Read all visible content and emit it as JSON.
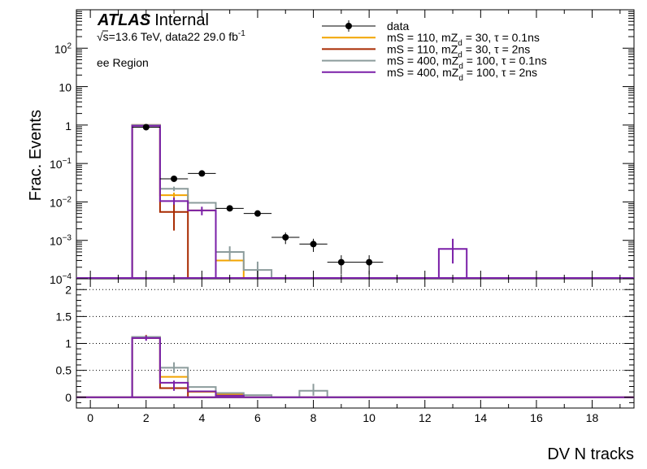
{
  "figure": {
    "atlas_label": "ATLAS",
    "atlas_suffix": "Internal",
    "energy_label": "√s=13.6 TeV, data22 29.0 fb",
    "energy_sup": "-1",
    "region_label": "ee Region"
  },
  "colors": {
    "data": "#000000",
    "series": [
      "#f2a400",
      "#a82a00",
      "#8c9c9c",
      "#7a1fa8"
    ]
  },
  "chart_data": [
    {
      "type": "line",
      "name": "main-panel",
      "ylabel": "Frac. Events",
      "yscale": "log",
      "ylim": [
        0.0001,
        1000
      ],
      "xlim": [
        -0.5,
        19.5
      ],
      "ytick_labels": [
        {
          "v": 100,
          "label": "10",
          "sup": "2"
        },
        {
          "v": 10,
          "label": "10",
          "sup": ""
        },
        {
          "v": 1,
          "label": "1",
          "sup": ""
        },
        {
          "v": 0.1,
          "label": "10",
          "sup": "−1"
        },
        {
          "v": 0.01,
          "label": "10",
          "sup": "−2"
        },
        {
          "v": 0.001,
          "label": "10",
          "sup": "−3"
        },
        {
          "v": 0.0001,
          "label": "10",
          "sup": "−4"
        }
      ],
      "legend_position": "top-right",
      "legend": [
        {
          "label": "data",
          "marker": "point"
        },
        {
          "label": "mS = 110, mZ",
          "sub": "d",
          "rest": " = 30, τ = 0.1ns",
          "marker": "line"
        },
        {
          "label": "mS = 110, mZ",
          "sub": "d",
          "rest": " = 30, τ = 2ns",
          "marker": "line"
        },
        {
          "label": "mS = 400, mZ",
          "sub": "d",
          "rest": " = 100, τ = 0.1ns",
          "marker": "line"
        },
        {
          "label": "mS = 400, mZ",
          "sub": "d",
          "rest": " = 100, τ = 2ns",
          "marker": "line"
        }
      ],
      "data_points": [
        {
          "x": 2,
          "y": 0.88,
          "yerr": 0.05
        },
        {
          "x": 3,
          "y": 0.04,
          "yerr": 0.005
        },
        {
          "x": 4,
          "y": 0.055,
          "yerr": 0.005
        },
        {
          "x": 5,
          "y": 0.0068,
          "yerr": 0.0008
        },
        {
          "x": 6,
          "y": 0.005,
          "yerr": 0.0006
        },
        {
          "x": 7,
          "y": 0.0012,
          "yerr": 0.0004
        },
        {
          "x": 8,
          "y": 0.0008,
          "yerr": 0.0003
        },
        {
          "x": 9,
          "y": 0.00027,
          "yerr": 0.00014
        },
        {
          "x": 10,
          "y": 0.00027,
          "yerr": 0.00014
        }
      ],
      "series": [
        {
          "bins": [
            [
              2,
              1.0
            ],
            [
              3,
              0.015
            ],
            [
              4,
              0.006
            ],
            [
              5,
              0.0003
            ]
          ],
          "errors": [
            [
              3,
              0.0125,
              0.0175
            ]
          ]
        },
        {
          "bins": [
            [
              2,
              1.0
            ],
            [
              3,
              0.0055
            ],
            [
              4,
              0
            ]
          ],
          "errors": [
            [
              3,
              0.0018,
              0.009
            ]
          ]
        },
        {
          "bins": [
            [
              2,
              1.0
            ],
            [
              3,
              0.022
            ],
            [
              4,
              0.0095
            ],
            [
              5,
              0.0005
            ],
            [
              6,
              0.00017
            ]
          ],
          "errors": [
            [
              3,
              0.019,
              0.025
            ],
            [
              5,
              0.0003,
              0.0007
            ],
            [
              6,
              9e-05,
              0.00028
            ]
          ]
        },
        {
          "bins": [
            [
              2,
              0.96
            ],
            [
              3,
              0.0105
            ],
            [
              4,
              0.006
            ],
            [
              13,
              0.0006
            ]
          ],
          "errors": [
            [
              3,
              0.0085,
              0.013
            ],
            [
              4,
              0.0045,
              0.0075
            ],
            [
              13,
              0.00025,
              0.0011
            ]
          ]
        }
      ]
    },
    {
      "type": "line",
      "name": "ratio-panel",
      "xlabel": "DV N tracks",
      "ylim": [
        -0.2,
        2.2
      ],
      "xlim": [
        -0.5,
        19.5
      ],
      "yticks": [
        0,
        0.5,
        1,
        1.5,
        2
      ],
      "ytick_labels": [
        "0",
        "0.5",
        "1",
        "1.5",
        "2"
      ],
      "xticks": [
        0,
        2,
        4,
        6,
        8,
        10,
        12,
        14,
        16,
        18
      ],
      "xtick_labels": [
        "0",
        "2",
        "4",
        "6",
        "8",
        "10",
        "12",
        "14",
        "16",
        "18"
      ],
      "grid": "horizontal-dotted",
      "series": [
        {
          "bins": [
            [
              2,
              1.12
            ],
            [
              3,
              0.38
            ],
            [
              4,
              0.1
            ],
            [
              5,
              0.05
            ]
          ],
          "errors": [
            [
              2,
              1.08,
              1.16
            ]
          ]
        },
        {
          "bins": [
            [
              2,
              1.1
            ],
            [
              3,
              0.17
            ],
            [
              4,
              0
            ]
          ],
          "errors": []
        },
        {
          "bins": [
            [
              2,
              1.12
            ],
            [
              3,
              0.55
            ],
            [
              4,
              0.19
            ],
            [
              5,
              0.08
            ],
            [
              6,
              0.04
            ],
            [
              7,
              0
            ],
            [
              8,
              0.12
            ],
            [
              9,
              0
            ]
          ],
          "errors": [
            [
              3,
              0.45,
              0.65
            ],
            [
              8,
              0.03,
              0.25
            ]
          ]
        },
        {
          "bins": [
            [
              2,
              1.1
            ],
            [
              3,
              0.27
            ],
            [
              4,
              0.11
            ],
            [
              5,
              0.03
            ]
          ],
          "errors": [
            [
              2,
              1.05,
              1.15
            ],
            [
              3,
              0.12,
              0.31
            ]
          ]
        }
      ]
    }
  ]
}
